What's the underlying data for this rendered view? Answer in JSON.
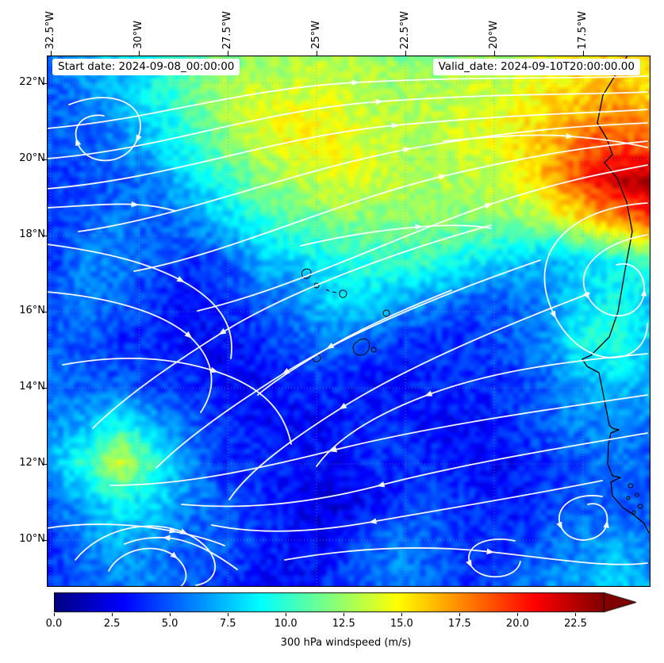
{
  "chart_data": {
    "type": "heatmap",
    "description": "300 hPa windspeed map with streamlines (jet colormap), Cape Verde / West Africa region",
    "annotations": {
      "start_date": "Start date: 2024-09-08_00:00:00",
      "valid_date": "Valid_date: 2024-09-10T20:00:00.00"
    },
    "x_axis": {
      "side": "top",
      "rotation_deg": 90,
      "tick_labels": [
        "32.5°W",
        "30°W",
        "27.5°W",
        "25°W",
        "22.5°W",
        "20°W",
        "17.5°W"
      ]
    },
    "y_axis": {
      "side": "left",
      "tick_labels": [
        "22°N",
        "20°N",
        "18°N",
        "16°N",
        "14°N",
        "12°N",
        "10°N"
      ]
    },
    "colorbar": {
      "label": "300 hPa windspeed (m/s)",
      "tick_labels": [
        "0.0",
        "2.5",
        "5.0",
        "7.5",
        "10.0",
        "12.5",
        "15.0",
        "17.5",
        "20.0",
        "22.5"
      ],
      "vmin": 0,
      "vmax": 23.75,
      "colormap": "jet",
      "extend": "max"
    },
    "geo": {
      "lon_range": [
        -32.6,
        -15.6
      ],
      "lat_range": [
        8.77,
        22.73
      ]
    },
    "windspeed_grid": {
      "units": "m/s",
      "lats": [
        22.5,
        21.5,
        20.5,
        19.5,
        18.5,
        17.5,
        16.5,
        15.5,
        14.5,
        13.5,
        12.5,
        11.5,
        10.5,
        9.5
      ],
      "lons": [
        -33,
        -32,
        -31,
        -30,
        -29,
        -28,
        -27,
        -26,
        -25,
        -24,
        -23,
        -22,
        -21,
        -20,
        -19,
        -18,
        -17,
        -16
      ],
      "values": [
        [
          6,
          7,
          8,
          9,
          11,
          12,
          12,
          13,
          13,
          13,
          12,
          12,
          13,
          13,
          14,
          15,
          16,
          15
        ],
        [
          5,
          6,
          7,
          9,
          11,
          13,
          14,
          14,
          14,
          13,
          13,
          13,
          14,
          14,
          15,
          16,
          17,
          16
        ],
        [
          5,
          5,
          6,
          8,
          10,
          12,
          14,
          15,
          15,
          14,
          13,
          13,
          14,
          15,
          16,
          18,
          19,
          18
        ],
        [
          4,
          5,
          5,
          6,
          8,
          10,
          12,
          13,
          14,
          14,
          13,
          13,
          13,
          14,
          16,
          19,
          22,
          23
        ],
        [
          4,
          5,
          6,
          5,
          6,
          8,
          10,
          11,
          12,
          12,
          12,
          12,
          12,
          12,
          13,
          15,
          17,
          19
        ],
        [
          4,
          6,
          6,
          5,
          4,
          5,
          7,
          8,
          9,
          10,
          10,
          10,
          9,
          8,
          7,
          8,
          9,
          10
        ],
        [
          5,
          6,
          5,
          4,
          3,
          4,
          5,
          6,
          8,
          8,
          7,
          6,
          5,
          5,
          6,
          8,
          9,
          8
        ],
        [
          5,
          5,
          4,
          4,
          3,
          3,
          4,
          5,
          6,
          5,
          4,
          4,
          4,
          5,
          6,
          9,
          10,
          8
        ],
        [
          6,
          5,
          5,
          4,
          4,
          3,
          3,
          4,
          4,
          3,
          3,
          4,
          4,
          4,
          5,
          7,
          8,
          7
        ],
        [
          6,
          7,
          9,
          7,
          5,
          4,
          3,
          3,
          3,
          4,
          4,
          3,
          3,
          4,
          5,
          6,
          6,
          6
        ],
        [
          7,
          10,
          14,
          10,
          6,
          4,
          4,
          3,
          3,
          4,
          4,
          4,
          3,
          3,
          4,
          5,
          6,
          5
        ],
        [
          5,
          7,
          9,
          8,
          6,
          5,
          4,
          3,
          2,
          3,
          4,
          5,
          4,
          3,
          4,
          5,
          5,
          5
        ],
        [
          4,
          6,
          7,
          6,
          5,
          5,
          4,
          3,
          3,
          5,
          6,
          5,
          4,
          4,
          5,
          6,
          7,
          6
        ],
        [
          4,
          5,
          6,
          6,
          5,
          4,
          3,
          3,
          4,
          5,
          6,
          5,
          4,
          5,
          6,
          7,
          8,
          7
        ]
      ]
    },
    "colors": {
      "streamline": "#ffffff",
      "coastline": "#000000",
      "gridline": "#999999"
    },
    "streamlines": [
      "M0,92 C140,80 240,42 390,34 C540,26 650,30 757,26",
      "M0,130 C150,118 260,70 420,58 C575,47 665,50 757,46",
      "M0,168 C160,155 280,103 440,88 C600,73 685,73 757,68",
      "M40,222 C170,204 300,148 455,118 C610,90 700,88 757,85",
      "M110,272 C235,248 360,186 500,152 C640,119 708,113 757,108",
      "M190,322 C310,294 440,228 558,188 C660,154 718,146 757,138",
      "M28,62 C88,38 132,66 114,106 C98,142 48,140 38,108 C31,86 50,72 72,76",
      "M0,238 C60,246 122,258 170,284 C218,310 238,342 232,382",
      "M0,298 C70,304 140,320 180,354 C214,386 214,420 194,450",
      "M20,390 C85,378 150,378 212,398 C274,418 300,450 308,490",
      "M560,214 C430,250 300,300 220,350 C140,400 88,440 58,470",
      "M622,258 C500,300 380,350 300,400 C220,450 168,490 138,520",
      "M684,300 C565,345 452,394 372,444 C292,494 250,530 230,560",
      "M510,296 C455,318 400,342 356,368 C312,394 282,414 266,428",
      "M757,226 C700,236 662,268 682,304 C702,340 750,334 753,298 C755,274 738,258 718,264",
      "M757,186 C660,192 600,248 640,328 C678,402 757,392 757,338",
      "M757,376 C650,386 560,398 480,428 C400,458 360,490 340,518",
      "M757,428 C620,448 480,468 360,498 C240,528 160,542 80,542",
      "M757,476 C640,496 520,516 420,542 C320,568 240,572 170,566",
      "M700,536 C600,556 500,572 410,588 C320,604 258,602 208,592",
      "M700,556 C664,550 638,570 648,594 C660,620 702,614 706,590 C709,572 696,562 682,566",
      "M590,612 C552,604 524,620 534,642 C546,664 592,662 597,638",
      "M36,636 C66,598 128,582 174,602 C220,622 224,662 188,668",
      "M78,650 C92,622 138,612 162,632 C186,652 176,676 148,676",
      "M240,648 C210,626 180,610 150,608 C130,607 112,610 98,616",
      "M300,636 C380,622 470,616 560,626 C650,636 708,646 757,640",
      "M0,192 C40,190 80,186 112,188 C132,189 148,192 162,196",
      "M500,108 C560,102 620,98 660,102 C700,105 732,110 757,116",
      "M320,240 C370,228 420,220 470,216 C510,213 540,214 560,218",
      "M0,596 C50,588 110,590 160,600 C190,606 210,612 224,618"
    ],
    "coastline": [
      "M732,0 L701,50 L694,85 L706,105 L713,125 L703,135 L719,155 L731,185 L738,222 L729,270 L720,323 L709,355 L686,378 L675,383 L681,392 L696,400 L699,415 L704,440 L709,466 L713,470 L721,472 L711,476 L708,490 L707,515 L713,530 L723,532 L711,538 L713,555 L726,570 L741,580 L753,590 L759,602"
    ],
    "coastal_islands": [
      "M736,540 a3,2.5 0 1 0 .1,0",
      "M744,552 a2.5,2 0 1 0 .1,0",
      "M733,556 a2,2 0 1 0 .1,0",
      "M748,566 a3,2.5 0 1 0 .1,0",
      "M740,574 a2,2 0 1 0 .1,0"
    ],
    "cape_verde_islands": [
      "M322,272 c6,-6 14,-2 10,6 c-3,6 -13,3 -10,-6",
      "M340,287 a3,3 0 1 0 .1,0",
      "M352,295 l4,2",
      "M360,298 l5,1",
      "M370,297 c5,-3 10,1 7,6 c-3,5 -11,1 -7,-6",
      "M428,321 a4,4 0 1 0 .1,0",
      "M392,360 c8,-6 17,-2 14,9 c-2,10 -15,12 -19,4 c-3,-7 1,-10 5,-13",
      "M340,377 a5,4.5 0 1 0 .1,0",
      "M412,368 a3,3 0 1 0 .1,0"
    ]
  }
}
